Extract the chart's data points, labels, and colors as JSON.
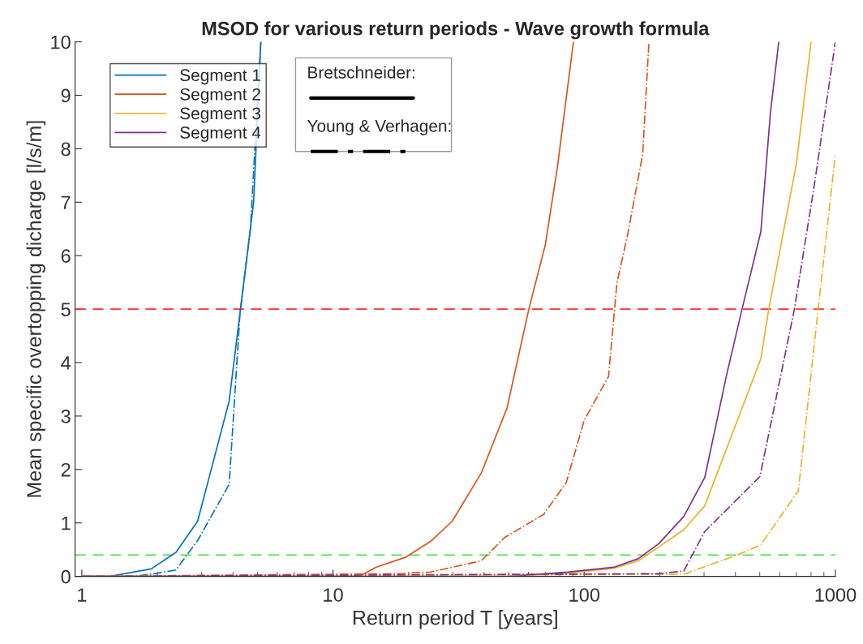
{
  "chart_data": {
    "type": "line",
    "title": "MSOD for various return periods - Wave growth formula",
    "xlabel": "Return period T [years]",
    "ylabel": "Mean specific overtopping dicharge [l/s/m]",
    "log": "x",
    "xlim": [
      0.94,
      1000
    ],
    "xticks": [
      1,
      10,
      100,
      1000
    ],
    "ylim": [
      0,
      10
    ],
    "yticks": [
      0,
      1,
      2,
      3,
      4,
      5,
      6,
      7,
      8,
      9,
      10
    ],
    "grid": false,
    "legend": "top left",
    "annotations": [
      "Bretschneider:",
      "Young & Verhagen:"
    ],
    "ref_lines": [
      {
        "axis": "y",
        "value": 5,
        "color": "#ff3030",
        "line_style": "dashed"
      },
      {
        "axis": "y",
        "value": 0.4,
        "color": "#40e040",
        "line_style": "dashed"
      }
    ],
    "series": [
      {
        "name": "Segment 1",
        "color": "#0072bd",
        "line_style": "solid",
        "x": [
          1,
          1.29,
          1.89,
          2.37,
          2.89,
          3.86,
          4.83,
          5.16
        ],
        "values": [
          0,
          0,
          0.14,
          0.45,
          1.03,
          3.28,
          7.0,
          10
        ]
      },
      {
        "name": "Segment 2",
        "color": "#d95319",
        "line_style": "solid",
        "x": [
          1,
          12.7,
          14.8,
          19.5,
          24.4,
          29.8,
          38.9,
          49.3,
          60.2,
          70,
          78.3,
          90.6
        ],
        "values": [
          0,
          0,
          0.17,
          0.36,
          0.65,
          1.03,
          1.93,
          3.15,
          5.0,
          6.2,
          7.67,
          10
        ]
      },
      {
        "name": "Segment 3",
        "color": "#edb120",
        "line_style": "solid",
        "x": [
          1,
          50,
          86,
          131,
          164,
          198,
          249,
          302,
          505,
          543,
          700,
          800
        ],
        "values": [
          0,
          0,
          0.06,
          0.15,
          0.29,
          0.55,
          0.87,
          1.32,
          4.07,
          5.0,
          7.73,
          10
        ]
      },
      {
        "name": "Segment 4",
        "color": "#7e2f8e",
        "line_style": "solid",
        "x": [
          1,
          50,
          86,
          131,
          164,
          198,
          249,
          302,
          369,
          425,
          505,
          551,
          595
        ],
        "values": [
          0,
          0,
          0.08,
          0.17,
          0.33,
          0.61,
          1.12,
          1.85,
          3.77,
          5.0,
          6.45,
          8.66,
          10
        ]
      },
      {
        "color": "#0072bd",
        "line_style": "dashed",
        "x": [
          1,
          1.6,
          1.95,
          2.37,
          2.89,
          3.86,
          4.26,
          4.69,
          5.16
        ],
        "values": [
          0,
          0,
          0.05,
          0.12,
          0.67,
          1.72,
          4.9,
          6.5,
          10
        ]
      },
      {
        "color": "#d95319",
        "line_style": "dashed",
        "x": [
          1,
          17.7,
          24.4,
          38.9,
          48.3,
          69,
          84.9,
          100,
          125,
          135,
          149,
          171,
          181
        ],
        "values": [
          0,
          0.05,
          0.08,
          0.29,
          0.73,
          1.16,
          1.76,
          2.92,
          3.74,
          5.49,
          6.4,
          7.9,
          10
        ]
      },
      {
        "color": "#edb120",
        "line_style": "dashed",
        "x": [
          1,
          249,
          407,
          505,
          712,
          854,
          1000
        ],
        "values": [
          0,
          0.04,
          0.4,
          0.59,
          1.6,
          5.0,
          7.9
        ]
      },
      {
        "color": "#7e2f8e",
        "line_style": "dashed",
        "x": [
          1,
          198,
          249,
          302,
          501,
          687,
          822,
          1000
        ],
        "values": [
          0,
          0.05,
          0.1,
          0.84,
          1.87,
          5.0,
          7.28,
          10
        ]
      }
    ]
  }
}
